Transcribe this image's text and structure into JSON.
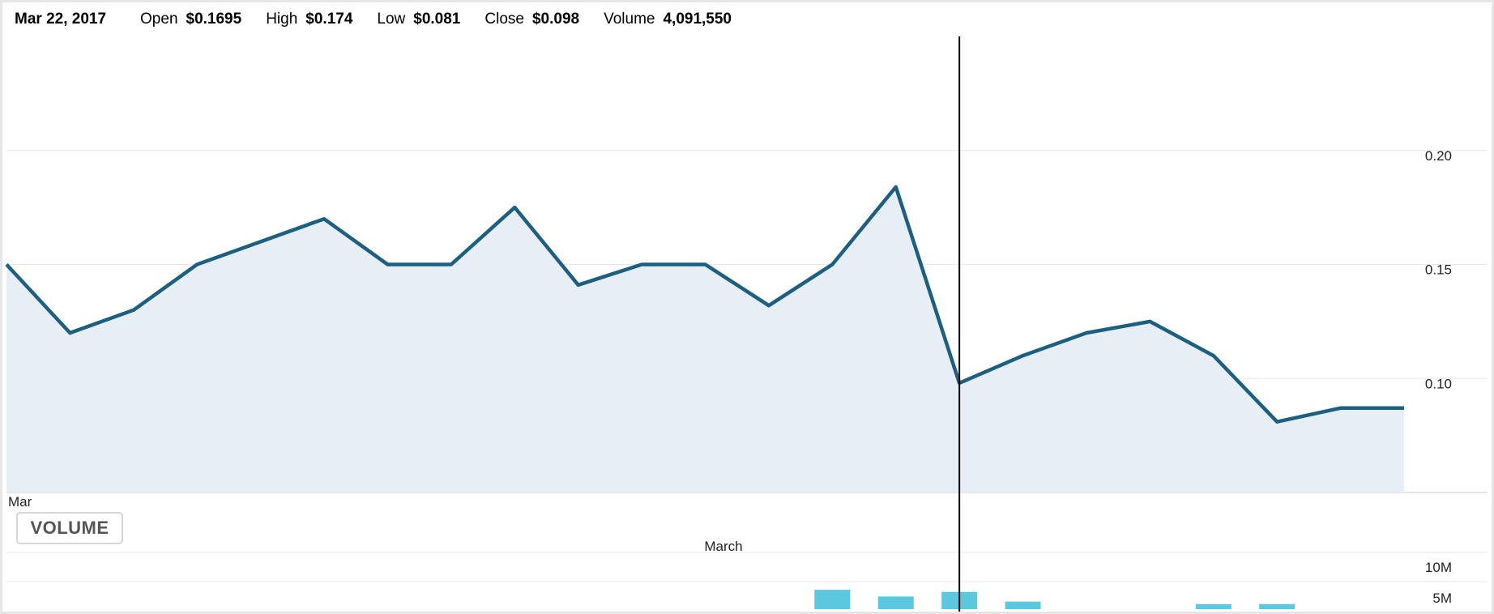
{
  "quote": {
    "date": "Mar 22, 2017",
    "open_label": "Open",
    "open_value": "$0.1695",
    "high_label": "High",
    "high_value": "$0.174",
    "low_label": "Low",
    "low_value": "$0.081",
    "close_label": "Close",
    "close_value": "$0.098",
    "volume_label": "Volume",
    "volume_value": "4,091,550"
  },
  "volume_button": {
    "label": "VOLUME"
  },
  "colors": {
    "price_line": "#1c5f80",
    "price_area": "#e8eef5",
    "volume_bar": "#5bc8e0",
    "crosshair": "#000000",
    "grid": "#e8e8e8"
  },
  "chart_data": [
    {
      "type": "area",
      "title": "",
      "xlabel": "",
      "ylabel": "",
      "x_tick_labels": [
        "Mar"
      ],
      "y_ticks": [
        "0.10",
        "0.15",
        "0.20"
      ],
      "ylim": [
        0.05,
        0.25
      ],
      "series": [
        {
          "values": [
            0.15,
            0.12,
            0.13,
            0.15,
            0.16,
            0.17,
            0.15,
            0.15,
            0.175,
            0.141,
            0.15,
            0.15,
            0.132,
            0.15,
            0.184,
            0.098,
            0.11,
            0.12,
            0.125,
            0.11,
            0.081,
            0.087,
            0.087
          ]
        }
      ],
      "crosshair_index": 15,
      "grid": true
    },
    {
      "type": "bar",
      "title": "",
      "x_tick_labels": [
        "March"
      ],
      "y_ticks": [
        "5M",
        "10M"
      ],
      "ylim": [
        0,
        15000000
      ],
      "series": [
        {
          "values": [
            0,
            0,
            0,
            0,
            0,
            0,
            0,
            0,
            0,
            0,
            0,
            0,
            0,
            4600000,
            3000000,
            4091550,
            1800000,
            0,
            0,
            1200000,
            1200000,
            0,
            0
          ]
        }
      ]
    }
  ]
}
